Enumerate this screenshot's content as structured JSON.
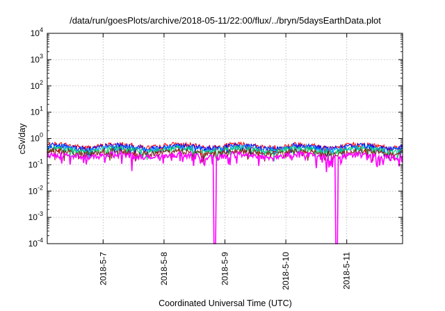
{
  "chart_data": {
    "type": "line",
    "title": "/data/run/goesPlots/archive/2018-05-11/22:00/flux/../bryn/5daysEarthData.plot",
    "xlabel": "Coordinated Universal Time (UTC)",
    "ylabel": "cSv/day",
    "yscale": "log",
    "ylim": [
      0.0001,
      10000
    ],
    "xlim": [
      "2018-05-06 02:00",
      "2018-05-11 22:00"
    ],
    "grid": true,
    "legend": "none",
    "x_ticks": [
      "2018-5-7",
      "2018-5-8",
      "2018-5-9",
      "2018-5-10",
      "2018-5-11"
    ],
    "y_ticks": [
      {
        "value": 0.0001,
        "base": "10",
        "exp": "-4"
      },
      {
        "value": 0.001,
        "base": "10",
        "exp": "-3"
      },
      {
        "value": 0.01,
        "base": "10",
        "exp": "-2"
      },
      {
        "value": 0.1,
        "base": "10",
        "exp": "-1"
      },
      {
        "value": 1,
        "base": "10",
        "exp": "0"
      },
      {
        "value": 10,
        "base": "10",
        "exp": "1"
      },
      {
        "value": 100,
        "base": "10",
        "exp": "2"
      },
      {
        "value": 1000,
        "base": "10",
        "exp": "3"
      },
      {
        "value": 10000,
        "base": "10",
        "exp": "4"
      }
    ],
    "series": [
      {
        "color": "#ff0000",
        "level": 0.52
      },
      {
        "color": "#0000ff",
        "level": 0.48
      },
      {
        "color": "#00a0ff",
        "level": 0.42
      },
      {
        "color": "#00d060",
        "level": 0.36
      },
      {
        "color": "#8b1a1a",
        "level": 0.3
      },
      {
        "color": "#ff00ff",
        "level": 0.22,
        "dropouts": [
          "2018-05-08 20:00",
          "2018-05-10 20:00"
        ]
      }
    ]
  }
}
